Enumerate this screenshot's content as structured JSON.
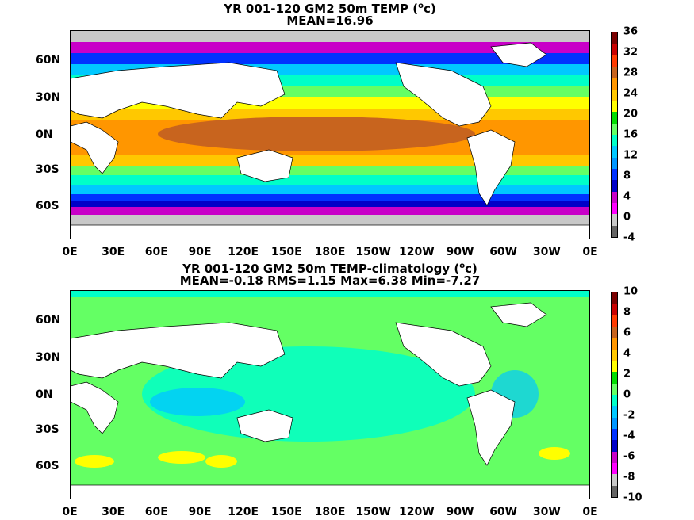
{
  "top": {
    "title_line1": "YR 001-120 GM2 50m TEMP (",
    "title_unit": "o",
    "title_end": "c)",
    "title_line2": "MEAN=16.96",
    "y_labels": [
      "60N",
      "30N",
      "0N",
      "30S",
      "60S"
    ],
    "x_labels": [
      "0E",
      "30E",
      "60E",
      "90E",
      "120E",
      "150E",
      "180E",
      "150W",
      "120W",
      "90W",
      "60W",
      "30W",
      "0E"
    ],
    "colorbar_labels": [
      "36",
      "32",
      "28",
      "24",
      "20",
      "16",
      "12",
      "8",
      "4",
      "0",
      "-4"
    ],
    "colorbar_colors": [
      "#7a0000",
      "#c80000",
      "#ff3b00",
      "#c8641e",
      "#ff9600",
      "#ffc800",
      "#ffff00",
      "#00dd00",
      "#64ff64",
      "#00ffc8",
      "#00c8ff",
      "#0096ff",
      "#0032ff",
      "#0000c8",
      "#c800c8",
      "#ff00ff",
      "#c8c8c8",
      "#646464"
    ]
  },
  "bottom": {
    "title_line1": "YR 001-120 GM2 50m TEMP-climatology (",
    "title_unit": "o",
    "title_end": "c)",
    "title_line2": "MEAN=-0.18   RMS=1.15   Max=6.38   Min=-7.27",
    "y_labels": [
      "60N",
      "30N",
      "0N",
      "30S",
      "60S"
    ],
    "x_labels": [
      "0E",
      "30E",
      "60E",
      "90E",
      "120E",
      "150E",
      "180E",
      "150W",
      "120W",
      "90W",
      "60W",
      "30W",
      "0E"
    ],
    "colorbar_labels": [
      "10",
      "8",
      "6",
      "4",
      "2",
      "0",
      "-2",
      "-4",
      "-6",
      "-8",
      "-10"
    ],
    "colorbar_colors": [
      "#7a0000",
      "#c80000",
      "#ff3b00",
      "#c8641e",
      "#ff9600",
      "#ffc800",
      "#ffff00",
      "#00dd00",
      "#64ff64",
      "#00ffc8",
      "#00c8ff",
      "#0096ff",
      "#0032ff",
      "#0000c8",
      "#c800c8",
      "#ff00ff",
      "#c8c8c8",
      "#646464"
    ]
  }
}
